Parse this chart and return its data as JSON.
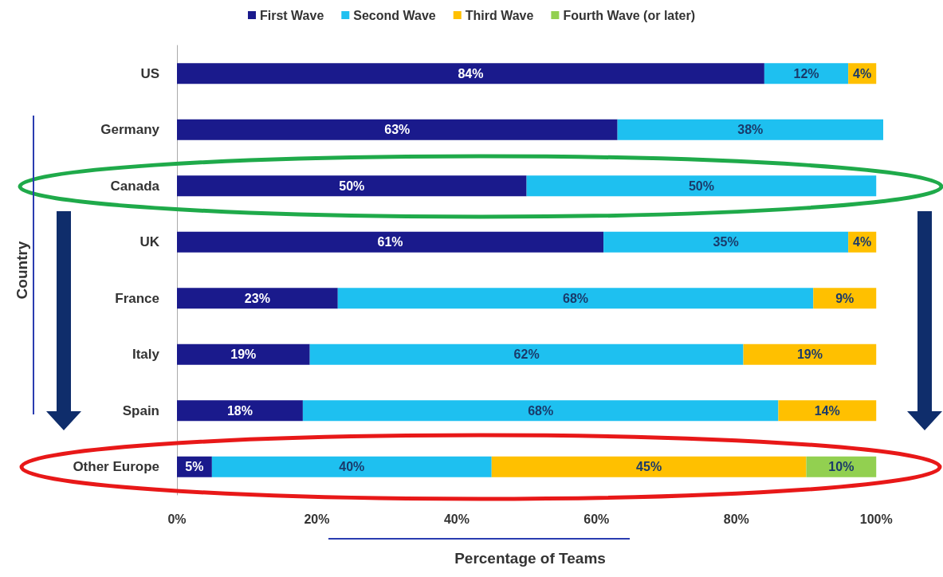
{
  "chart_data": {
    "type": "bar",
    "orientation": "horizontal",
    "stacked": true,
    "categories": [
      "US",
      "Germany",
      "Canada",
      "UK",
      "France",
      "Italy",
      "Spain",
      "Other Europe"
    ],
    "series": [
      {
        "name": "First Wave",
        "color": "#1a1a8c",
        "values": [
          84,
          63,
          50,
          61,
          23,
          19,
          18,
          5
        ],
        "value_labels": [
          "84%",
          "63%",
          "50%",
          "61%",
          "23%",
          "19%",
          "18%",
          "5%"
        ]
      },
      {
        "name": "Second Wave",
        "color": "#1ec0f0",
        "values": [
          12,
          38,
          50,
          35,
          68,
          62,
          68,
          40
        ],
        "value_labels": [
          "12%",
          "38%",
          "50%",
          "35%",
          "68%",
          "62%",
          "68%",
          "40%"
        ]
      },
      {
        "name": "Third Wave",
        "color": "#ffc000",
        "values": [
          4,
          null,
          null,
          4,
          9,
          19,
          14,
          45
        ],
        "value_labels": [
          "4%",
          null,
          null,
          "4%",
          "9%",
          "19%",
          "14%",
          "45%"
        ]
      },
      {
        "name": "Fourth Wave (or later)",
        "color": "#92d050",
        "values": [
          null,
          null,
          null,
          null,
          null,
          null,
          null,
          10
        ],
        "value_labels": [
          null,
          null,
          null,
          null,
          null,
          null,
          null,
          "10%"
        ]
      }
    ],
    "xlim": [
      0,
      101
    ],
    "xticks": [
      {
        "value": 0,
        "label": "0%"
      },
      {
        "value": 20,
        "label": "20%"
      },
      {
        "value": 40,
        "label": "40%"
      },
      {
        "value": 60,
        "label": "60%"
      },
      {
        "value": 80,
        "label": "80%"
      },
      {
        "value": 100,
        "label": "100%"
      }
    ],
    "xlabel": "Percentage of Teams",
    "ylabel": "Country",
    "legend": "top"
  }
}
